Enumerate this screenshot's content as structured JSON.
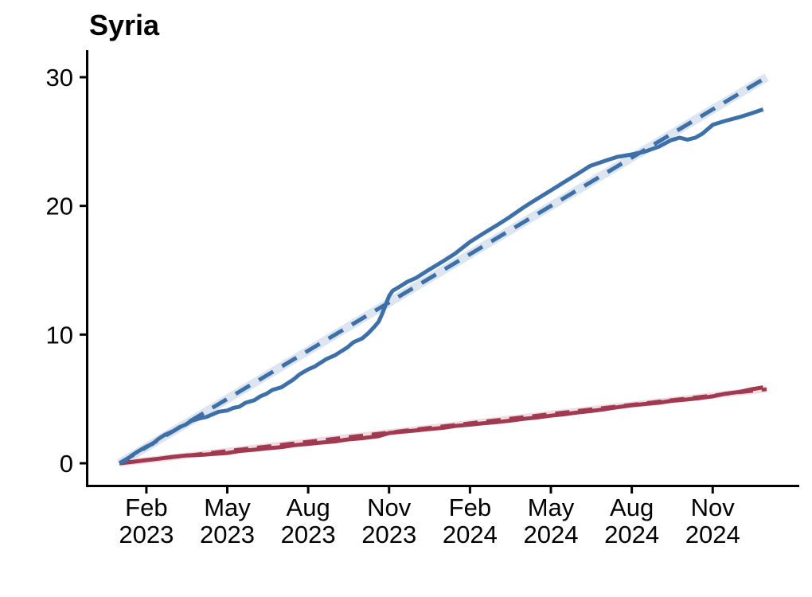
{
  "chart_data": {
    "type": "line",
    "title": "Syria",
    "xlabel": "",
    "ylabel": "",
    "grid": false,
    "legend": "none",
    "plot_background": "#ffffff",
    "axis_color": "#000000",
    "x_axis": {
      "start": "2023-01-01",
      "end": "2025-01-01",
      "ticks": [
        {
          "date": "2023-02-01",
          "line1": "Feb",
          "line2": "2023"
        },
        {
          "date": "2023-05-01",
          "line1": "May",
          "line2": "2023"
        },
        {
          "date": "2023-08-01",
          "line1": "Aug",
          "line2": "2023"
        },
        {
          "date": "2023-11-01",
          "line1": "Nov",
          "line2": "2023"
        },
        {
          "date": "2024-02-01",
          "line1": "Feb",
          "line2": "2024"
        },
        {
          "date": "2024-05-01",
          "line1": "May",
          "line2": "2024"
        },
        {
          "date": "2024-08-01",
          "line1": "Aug",
          "line2": "2024"
        },
        {
          "date": "2024-11-01",
          "line1": "Nov",
          "line2": "2024"
        }
      ]
    },
    "y_axis": {
      "min": 0,
      "max": 30,
      "ticks": [
        0,
        10,
        20,
        30
      ]
    },
    "series": [
      {
        "id": "blue-dashed-trend",
        "name": "blue dashed straight trend line with light band",
        "style": "dashed",
        "color": "#3d70a8",
        "band_color": "#dce5f0",
        "points": [
          [
            "2023-01-01",
            0
          ],
          [
            "2025-01-01",
            30.0
          ]
        ]
      },
      {
        "id": "red-dashed-trend",
        "name": "red dashed straight trend line with light band",
        "style": "dashed",
        "color": "#a13a50",
        "band_color": "#f1dde1",
        "points": [
          [
            "2023-01-01",
            0
          ],
          [
            "2025-01-01",
            5.75
          ]
        ]
      },
      {
        "id": "red-solid-observed",
        "name": "red solid observed line",
        "style": "solid",
        "color": "#a13a50",
        "points": [
          [
            "2023-01-01",
            0
          ],
          [
            "2023-01-15",
            0.1
          ],
          [
            "2023-02-01",
            0.25
          ],
          [
            "2023-02-15",
            0.35
          ],
          [
            "2023-03-01",
            0.5
          ],
          [
            "2023-03-15",
            0.6
          ],
          [
            "2023-04-01",
            0.65
          ],
          [
            "2023-04-15",
            0.72
          ],
          [
            "2023-05-01",
            0.8
          ],
          [
            "2023-05-15",
            0.95
          ],
          [
            "2023-06-01",
            1.05
          ],
          [
            "2023-06-15",
            1.15
          ],
          [
            "2023-07-01",
            1.25
          ],
          [
            "2023-07-15",
            1.4
          ],
          [
            "2023-08-01",
            1.5
          ],
          [
            "2023-08-15",
            1.6
          ],
          [
            "2023-09-01",
            1.7
          ],
          [
            "2023-09-15",
            1.85
          ],
          [
            "2023-10-01",
            1.95
          ],
          [
            "2023-10-20",
            2.1
          ],
          [
            "2023-11-01",
            2.35
          ],
          [
            "2023-11-15",
            2.45
          ],
          [
            "2023-12-01",
            2.55
          ],
          [
            "2023-12-15",
            2.65
          ],
          [
            "2024-01-01",
            2.75
          ],
          [
            "2024-01-15",
            2.9
          ],
          [
            "2024-02-01",
            3.0
          ],
          [
            "2024-02-15",
            3.1
          ],
          [
            "2024-03-01",
            3.2
          ],
          [
            "2024-03-15",
            3.3
          ],
          [
            "2024-04-01",
            3.45
          ],
          [
            "2024-04-15",
            3.55
          ],
          [
            "2024-05-01",
            3.7
          ],
          [
            "2024-05-15",
            3.8
          ],
          [
            "2024-06-01",
            3.95
          ],
          [
            "2024-06-15",
            4.05
          ],
          [
            "2024-07-01",
            4.2
          ],
          [
            "2024-07-15",
            4.35
          ],
          [
            "2024-08-01",
            4.5
          ],
          [
            "2024-08-15",
            4.6
          ],
          [
            "2024-09-01",
            4.7
          ],
          [
            "2024-09-15",
            4.85
          ],
          [
            "2024-10-01",
            4.95
          ],
          [
            "2024-10-15",
            5.05
          ],
          [
            "2024-11-01",
            5.2
          ],
          [
            "2024-11-15",
            5.4
          ],
          [
            "2024-12-01",
            5.55
          ],
          [
            "2024-12-15",
            5.75
          ],
          [
            "2024-12-28",
            5.9
          ]
        ]
      },
      {
        "id": "blue-solid-observed",
        "name": "blue solid observed line",
        "style": "solid",
        "color": "#3d70a8",
        "points": [
          [
            "2023-01-01",
            0
          ],
          [
            "2023-01-08",
            0.2
          ],
          [
            "2023-01-15",
            0.6
          ],
          [
            "2023-01-22",
            0.9
          ],
          [
            "2023-02-01",
            1.3
          ],
          [
            "2023-02-08",
            1.5
          ],
          [
            "2023-02-15",
            1.9
          ],
          [
            "2023-02-22",
            2.2
          ],
          [
            "2023-03-01",
            2.5
          ],
          [
            "2023-03-08",
            2.8
          ],
          [
            "2023-03-15",
            3.0
          ],
          [
            "2023-03-22",
            3.3
          ],
          [
            "2023-04-01",
            3.5
          ],
          [
            "2023-04-08",
            3.6
          ],
          [
            "2023-04-15",
            3.8
          ],
          [
            "2023-04-22",
            4.0
          ],
          [
            "2023-05-01",
            4.1
          ],
          [
            "2023-05-08",
            4.3
          ],
          [
            "2023-05-15",
            4.4
          ],
          [
            "2023-05-22",
            4.7
          ],
          [
            "2023-06-01",
            4.9
          ],
          [
            "2023-06-08",
            5.2
          ],
          [
            "2023-06-15",
            5.4
          ],
          [
            "2023-06-22",
            5.7
          ],
          [
            "2023-07-01",
            5.9
          ],
          [
            "2023-07-08",
            6.2
          ],
          [
            "2023-07-15",
            6.5
          ],
          [
            "2023-07-22",
            6.9
          ],
          [
            "2023-08-01",
            7.3
          ],
          [
            "2023-08-08",
            7.5
          ],
          [
            "2023-08-15",
            7.8
          ],
          [
            "2023-08-22",
            8.1
          ],
          [
            "2023-09-01",
            8.4
          ],
          [
            "2023-09-08",
            8.7
          ],
          [
            "2023-09-15",
            9.0
          ],
          [
            "2023-09-22",
            9.4
          ],
          [
            "2023-10-01",
            9.7
          ],
          [
            "2023-10-08",
            10.1
          ],
          [
            "2023-10-15",
            10.6
          ],
          [
            "2023-10-20",
            11.0
          ],
          [
            "2023-10-24",
            11.6
          ],
          [
            "2023-11-01",
            13.0
          ],
          [
            "2023-11-05",
            13.4
          ],
          [
            "2023-11-10",
            13.6
          ],
          [
            "2023-11-15",
            13.8
          ],
          [
            "2023-11-22",
            14.1
          ],
          [
            "2023-12-01",
            14.4
          ],
          [
            "2023-12-15",
            15.0
          ],
          [
            "2024-01-01",
            15.7
          ],
          [
            "2024-01-15",
            16.3
          ],
          [
            "2024-02-01",
            17.2
          ],
          [
            "2024-02-15",
            17.8
          ],
          [
            "2024-03-01",
            18.5
          ],
          [
            "2024-03-15",
            19.1
          ],
          [
            "2024-04-01",
            19.9
          ],
          [
            "2024-04-15",
            20.5
          ],
          [
            "2024-05-01",
            21.2
          ],
          [
            "2024-05-15",
            21.8
          ],
          [
            "2024-06-01",
            22.5
          ],
          [
            "2024-06-15",
            23.1
          ],
          [
            "2024-07-01",
            23.5
          ],
          [
            "2024-07-15",
            23.8
          ],
          [
            "2024-08-01",
            24.0
          ],
          [
            "2024-08-15",
            24.2
          ],
          [
            "2024-09-01",
            24.6
          ],
          [
            "2024-09-15",
            25.1
          ],
          [
            "2024-09-25",
            25.3
          ],
          [
            "2024-10-03",
            25.15
          ],
          [
            "2024-10-12",
            25.3
          ],
          [
            "2024-10-20",
            25.6
          ],
          [
            "2024-11-01",
            26.3
          ],
          [
            "2024-11-15",
            26.6
          ],
          [
            "2024-12-01",
            26.9
          ],
          [
            "2024-12-15",
            27.2
          ],
          [
            "2024-12-28",
            27.5
          ]
        ]
      }
    ]
  }
}
